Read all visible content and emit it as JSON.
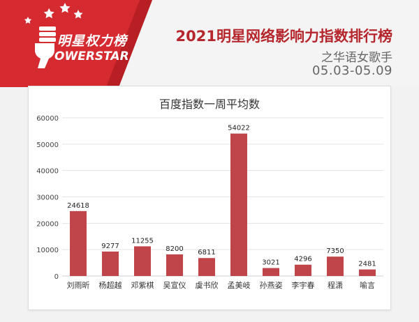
{
  "brand": {
    "name_cn": "明星权力榜",
    "name_en": "OWERSTAR"
  },
  "header": {
    "title": "2021明星网络影响力指数排行榜",
    "subtitle": "之华语女歌手",
    "date_range": "05.03-05.09"
  },
  "colors": {
    "accent": "#c0262d",
    "bar": "#c0454a",
    "banner": "#d42a30"
  },
  "chart_data": {
    "type": "bar",
    "title": "百度指数一周平均数",
    "categories": [
      "刘雨昕",
      "杨超越",
      "邓紫棋",
      "吴宣仪",
      "虞书欣",
      "孟美岐",
      "孙燕姿",
      "李宇春",
      "程潇",
      "喻言"
    ],
    "values": [
      24618,
      9277,
      11255,
      8200,
      6811,
      54022,
      3021,
      4296,
      7350,
      2481
    ],
    "data_labels": [
      "24618",
      "9277",
      "11255",
      "8200",
      "6811",
      "54022",
      "3021",
      "4296",
      "7350",
      "2481"
    ],
    "y_ticks": [
      "0",
      "10000",
      "20000",
      "30000",
      "40000",
      "50000",
      "60000"
    ],
    "ylim": [
      0,
      60000
    ],
    "grid": true,
    "legend": "none"
  }
}
